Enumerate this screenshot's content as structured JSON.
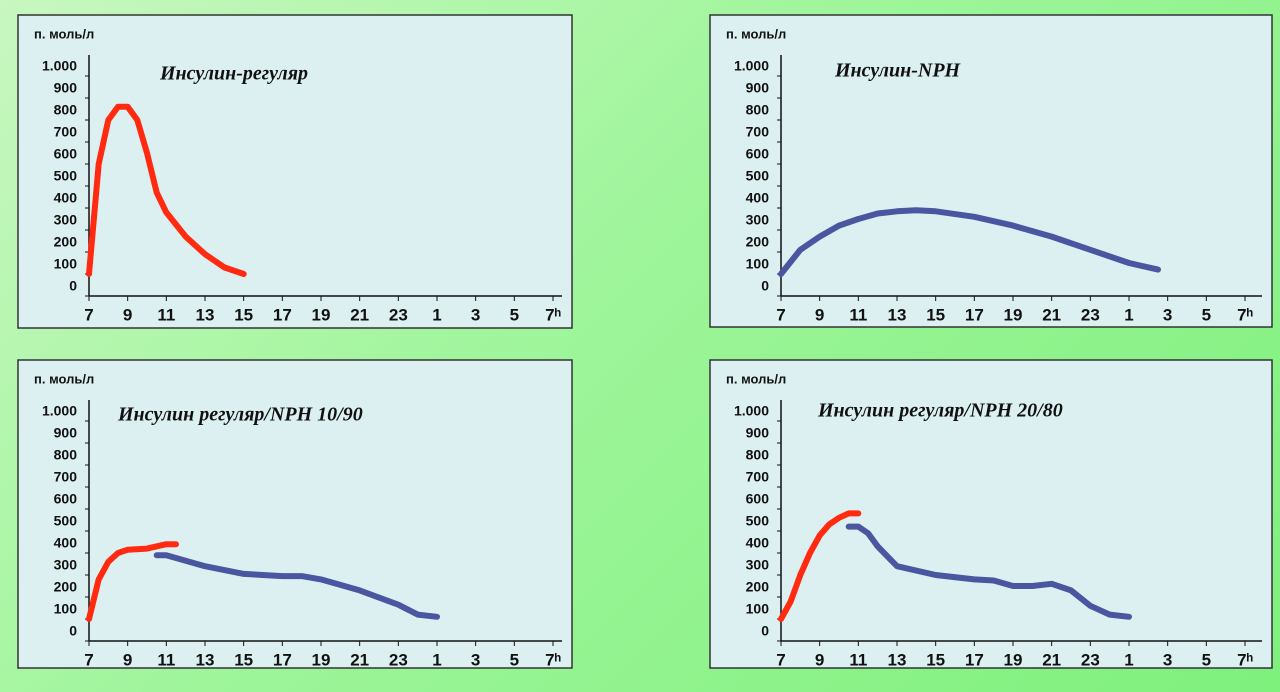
{
  "chart_data": [
    {
      "type": "line",
      "title": "Инсулин-регуляр",
      "ylabel": "п. моль/л",
      "xlim": [
        7,
        31
      ],
      "xticks": [
        7,
        9,
        11,
        13,
        15,
        17,
        19,
        21,
        23,
        {
          "value": 25,
          "label": "1"
        },
        {
          "value": 27,
          "label": "3"
        },
        {
          "value": 29,
          "label": "5"
        },
        {
          "value": 31,
          "label": "7ʰ"
        }
      ],
      "ylim": [
        0,
        1050
      ],
      "yticks": [
        0,
        100,
        200,
        300,
        400,
        500,
        600,
        700,
        800,
        900,
        {
          "value": 1000,
          "label": "1.000"
        }
      ],
      "series": [
        {
          "color": "#ff2a10",
          "x": [
            7,
            7.5,
            8,
            8.5,
            9,
            9.5,
            10,
            10.5,
            11,
            12,
            13,
            14,
            15
          ],
          "values": [
            100,
            600,
            800,
            860,
            860,
            800,
            650,
            470,
            380,
            270,
            190,
            130,
            100
          ]
        }
      ]
    },
    {
      "type": "line",
      "title": "Инсулин-NPH",
      "ylabel": "п. моль/л",
      "xlim": [
        7,
        31
      ],
      "xticks": [
        7,
        9,
        11,
        13,
        15,
        17,
        19,
        21,
        23,
        {
          "value": 25,
          "label": "1"
        },
        {
          "value": 27,
          "label": "3"
        },
        {
          "value": 29,
          "label": "5"
        },
        {
          "value": 31,
          "label": "7ʰ"
        }
      ],
      "ylim": [
        0,
        1050
      ],
      "yticks": [
        0,
        100,
        200,
        300,
        400,
        500,
        600,
        700,
        800,
        900,
        {
          "value": 1000,
          "label": "1.000"
        }
      ],
      "series": [
        {
          "color": "#4a56a0",
          "x": [
            7,
            8,
            9,
            10,
            11,
            12,
            13,
            14,
            15,
            17,
            19,
            21,
            23,
            25,
            26.5
          ],
          "values": [
            100,
            210,
            270,
            320,
            350,
            375,
            385,
            390,
            385,
            360,
            320,
            270,
            210,
            150,
            120
          ]
        }
      ]
    },
    {
      "type": "line",
      "title": "Инсулин регуляр/NPH  10/90",
      "ylabel": "п. моль/л",
      "xlim": [
        7,
        31
      ],
      "xticks": [
        7,
        9,
        11,
        13,
        15,
        17,
        19,
        21,
        23,
        {
          "value": 25,
          "label": "1"
        },
        {
          "value": 27,
          "label": "3"
        },
        {
          "value": 29,
          "label": "5"
        },
        {
          "value": 31,
          "label": "7ʰ"
        }
      ],
      "ylim": [
        0,
        1050
      ],
      "yticks": [
        0,
        100,
        200,
        300,
        400,
        500,
        600,
        700,
        800,
        900,
        {
          "value": 1000,
          "label": "1.000"
        }
      ],
      "series": [
        {
          "color": "#ff2a10",
          "x": [
            7,
            7.5,
            8,
            8.5,
            9,
            10,
            11,
            11.5
          ],
          "values": [
            100,
            280,
            360,
            400,
            415,
            420,
            440,
            440
          ]
        },
        {
          "color": "#4a56a0",
          "x": [
            10.5,
            11,
            13,
            15,
            17,
            18,
            19,
            21,
            23,
            24,
            25
          ],
          "values": [
            390,
            390,
            340,
            305,
            295,
            295,
            280,
            230,
            165,
            120,
            110
          ]
        }
      ]
    },
    {
      "type": "line",
      "title": "Инсулин регуляр/NPH  20/80",
      "ylabel": "п. моль/л",
      "xlim": [
        7,
        31
      ],
      "xticks": [
        7,
        9,
        11,
        13,
        15,
        17,
        19,
        21,
        23,
        {
          "value": 25,
          "label": "1"
        },
        {
          "value": 27,
          "label": "3"
        },
        {
          "value": 29,
          "label": "5"
        },
        {
          "value": 31,
          "label": "7ʰ"
        }
      ],
      "ylim": [
        0,
        1050
      ],
      "yticks": [
        0,
        100,
        200,
        300,
        400,
        500,
        600,
        700,
        800,
        900,
        {
          "value": 1000,
          "label": "1.000"
        }
      ],
      "series": [
        {
          "color": "#ff2a10",
          "x": [
            7,
            7.5,
            8,
            8.5,
            9,
            9.5,
            10,
            10.5,
            11
          ],
          "values": [
            100,
            180,
            300,
            400,
            480,
            530,
            560,
            580,
            580
          ]
        },
        {
          "color": "#4a56a0",
          "x": [
            10.5,
            11,
            11.5,
            12,
            13,
            15,
            17,
            18,
            19,
            20,
            21,
            22,
            23,
            24,
            25
          ],
          "values": [
            520,
            520,
            490,
            430,
            340,
            300,
            280,
            275,
            250,
            250,
            260,
            230,
            160,
            120,
            110
          ]
        }
      ]
    }
  ]
}
